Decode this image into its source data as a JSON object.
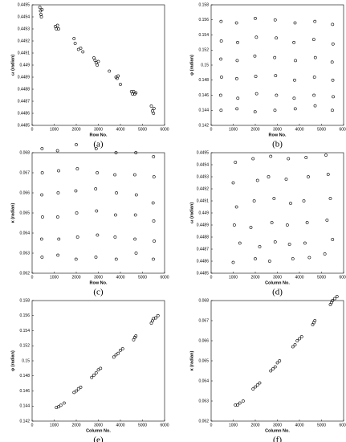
{
  "chart_data": [
    {
      "type": "scatter",
      "caption": "(a)",
      "x_label": "Row No.",
      "y_label": "ω (radian)",
      "color": "#000000",
      "xlim": [
        0,
        6000
      ],
      "xticks": [
        0,
        1000,
        2000,
        3000,
        4000,
        5000,
        6000
      ],
      "ylim": [
        0.4485,
        0.4495
      ],
      "yticks": [
        0.4485,
        0.4486,
        0.4487,
        0.4488,
        0.4489,
        0.449,
        0.4491,
        0.4492,
        0.4493,
        0.4494,
        0.4495
      ],
      "x": [
        350,
        380,
        400,
        420,
        450,
        1050,
        1100,
        1150,
        1200,
        1900,
        1950,
        2100,
        2200,
        2300,
        2800,
        2850,
        2900,
        2950,
        3000,
        3500,
        3800,
        3850,
        3900,
        4000,
        4500,
        4550,
        4600,
        4650,
        4700,
        5400,
        5450,
        5500,
        5520
      ],
      "values": [
        0.44948,
        0.44945,
        0.44942,
        0.4494,
        0.44946,
        0.44932,
        0.4493,
        0.44933,
        0.4493,
        0.44922,
        0.44918,
        0.44913,
        0.44914,
        0.44911,
        0.44906,
        0.44904,
        0.44902,
        0.449,
        0.44903,
        0.44895,
        0.4489,
        0.44889,
        0.44891,
        0.44884,
        0.44878,
        0.44876,
        0.44878,
        0.44876,
        0.44877,
        0.44866,
        0.44862,
        0.4486,
        0.44864
      ]
    },
    {
      "type": "scatter",
      "caption": "(b)",
      "x_label": "Row No.",
      "y_label": "φ (radian)",
      "color": "#000000",
      "xlim": [
        0,
        6000
      ],
      "xticks": [
        0,
        1000,
        2000,
        3000,
        4000,
        5000,
        6000
      ],
      "ylim": [
        0.142,
        0.158
      ],
      "yticks": [
        0.142,
        0.144,
        0.146,
        0.148,
        0.15,
        0.152,
        0.154,
        0.156,
        0.158
      ],
      "x": [
        450,
        460,
        440,
        470,
        430,
        450,
        1150,
        1200,
        1180,
        1160,
        1210,
        1170,
        2000,
        2050,
        1980,
        2020,
        2060,
        1990,
        2900,
        2950,
        2880,
        2920,
        2960,
        2890,
        3800,
        3750,
        3820,
        3780,
        3760,
        3810,
        4700,
        4650,
        4720,
        4680,
        4660,
        4710,
        5500,
        5520,
        5480,
        5510,
        5530,
        5490
      ],
      "values": [
        0.1558,
        0.1532,
        0.1508,
        0.1484,
        0.146,
        0.144,
        0.1556,
        0.153,
        0.1506,
        0.1482,
        0.1456,
        0.1442,
        0.1562,
        0.1537,
        0.1512,
        0.1485,
        0.1462,
        0.1438,
        0.156,
        0.1536,
        0.151,
        0.1486,
        0.146,
        0.144,
        0.1556,
        0.153,
        0.1506,
        0.148,
        0.1456,
        0.1442,
        0.1558,
        0.1534,
        0.151,
        0.1484,
        0.146,
        0.1446,
        0.1554,
        0.1528,
        0.1504,
        0.148,
        0.1458,
        0.144
      ]
    },
    {
      "type": "scatter",
      "caption": "(c)",
      "x_label": "Row No.",
      "y_label": "κ (radian)",
      "color": "#000000",
      "xlim": [
        0,
        6000
      ],
      "xticks": [
        0,
        1000,
        2000,
        3000,
        4000,
        5000,
        6000
      ],
      "ylim": [
        0.062,
        0.068
      ],
      "yticks": [
        0.062,
        0.063,
        0.064,
        0.065,
        0.066,
        0.067,
        0.068
      ],
      "x": [
        450,
        460,
        440,
        470,
        430,
        450,
        1150,
        1200,
        1180,
        1160,
        1210,
        1170,
        2000,
        2050,
        1980,
        2020,
        2060,
        1990,
        2900,
        2950,
        2880,
        2920,
        2960,
        2890,
        3800,
        3750,
        3820,
        3780,
        3760,
        3810,
        4700,
        4650,
        4720,
        4680,
        4660,
        4710,
        5500,
        5520,
        5480,
        5510,
        5530,
        5490
      ],
      "values": [
        0.0682,
        0.067,
        0.0659,
        0.0648,
        0.0637,
        0.0628,
        0.0681,
        0.0671,
        0.066,
        0.0648,
        0.0637,
        0.0629,
        0.0684,
        0.0672,
        0.0661,
        0.065,
        0.0638,
        0.0627,
        0.0682,
        0.067,
        0.0662,
        0.0651,
        0.0639,
        0.0628,
        0.068,
        0.0669,
        0.066,
        0.0649,
        0.0638,
        0.0627,
        0.068,
        0.0669,
        0.0659,
        0.0649,
        0.0637,
        0.063,
        0.0678,
        0.0668,
        0.0655,
        0.0646,
        0.0636,
        0.0627
      ]
    },
    {
      "type": "scatter",
      "caption": "(d)",
      "x_label": "Column No.",
      "y_label": "ω (radian)",
      "color": "#000000",
      "xlim": [
        0,
        6000
      ],
      "xticks": [
        0,
        1000,
        2000,
        3000,
        4000,
        5000,
        6000
      ],
      "ylim": [
        0.4485,
        0.4495
      ],
      "yticks": [
        0.4485,
        0.4486,
        0.4487,
        0.4488,
        0.4489,
        0.449,
        0.4491,
        0.4492,
        0.4493,
        0.4494,
        0.4495
      ],
      "x": [
        1100,
        1000,
        1150,
        1050,
        1300,
        1000,
        1900,
        2100,
        1950,
        1800,
        2200,
        2000,
        2700,
        2600,
        2850,
        2750,
        2900,
        2650,
        3500,
        3400,
        3600,
        3450,
        3550,
        3700,
        4300,
        4400,
        4200,
        4350,
        4250,
        4450,
        5200,
        5300,
        5400,
        5250,
        5500,
        5150
      ],
      "values": [
        0.44942,
        0.44925,
        0.44905,
        0.4489,
        0.44875,
        0.44859,
        0.44945,
        0.44927,
        0.4491,
        0.44888,
        0.44872,
        0.44862,
        0.44947,
        0.4493,
        0.44912,
        0.44892,
        0.44876,
        0.4486,
        0.44945,
        0.44928,
        0.44908,
        0.4489,
        0.44874,
        0.44862,
        0.44946,
        0.4493,
        0.4491,
        0.44892,
        0.44875,
        0.44863,
        0.44948,
        0.44932,
        0.44912,
        0.44894,
        0.44878,
        0.44866
      ]
    },
    {
      "type": "scatter",
      "caption": "(e)",
      "x_label": "Column No.",
      "y_label": "φ (radian)",
      "color": "#000000",
      "xlim": [
        0,
        6000
      ],
      "xticks": [
        0,
        1000,
        2000,
        3000,
        4000,
        5000,
        6000
      ],
      "ylim": [
        0.142,
        0.158
      ],
      "yticks": [
        0.142,
        0.144,
        0.146,
        0.148,
        0.15,
        0.152,
        0.154,
        0.156,
        0.158
      ],
      "x": [
        1100,
        1200,
        1300,
        1450,
        1900,
        2000,
        2100,
        2200,
        2700,
        2800,
        2900,
        3000,
        3100,
        3700,
        3800,
        3900,
        4000,
        4100,
        4600,
        4650,
        4700,
        5400,
        5450,
        5500,
        5600,
        5700
      ],
      "values": [
        0.1438,
        0.1439,
        0.1441,
        0.1444,
        0.1458,
        0.146,
        0.1463,
        0.1465,
        0.1478,
        0.1481,
        0.1484,
        0.1488,
        0.149,
        0.1505,
        0.1508,
        0.151,
        0.1514,
        0.1516,
        0.1528,
        0.1531,
        0.1533,
        0.155,
        0.1553,
        0.1556,
        0.1557,
        0.156
      ]
    },
    {
      "type": "scatter",
      "caption": "(f)",
      "x_label": "Column No.",
      "y_label": "κ (radian)",
      "color": "#000000",
      "xlim": [
        0,
        6000
      ],
      "xticks": [
        0,
        1000,
        2000,
        3000,
        4000,
        5000,
        6000
      ],
      "ylim": [
        0.062,
        0.068
      ],
      "yticks": [
        0.062,
        0.063,
        0.064,
        0.065,
        0.066,
        0.067,
        0.068
      ],
      "x": [
        1100,
        1200,
        1300,
        1450,
        1900,
        2000,
        2100,
        2200,
        2700,
        2800,
        2900,
        3000,
        3100,
        3700,
        3800,
        3900,
        4000,
        4100,
        4600,
        4650,
        4700,
        5400,
        5450,
        5500,
        5600,
        5700
      ],
      "values": [
        0.0628,
        0.0628,
        0.0629,
        0.063,
        0.0636,
        0.0637,
        0.0638,
        0.0639,
        0.0645,
        0.0646,
        0.0647,
        0.0649,
        0.065,
        0.0657,
        0.0658,
        0.066,
        0.0661,
        0.0662,
        0.0668,
        0.0669,
        0.067,
        0.0678,
        0.0679,
        0.068,
        0.0681,
        0.0682
      ]
    }
  ]
}
